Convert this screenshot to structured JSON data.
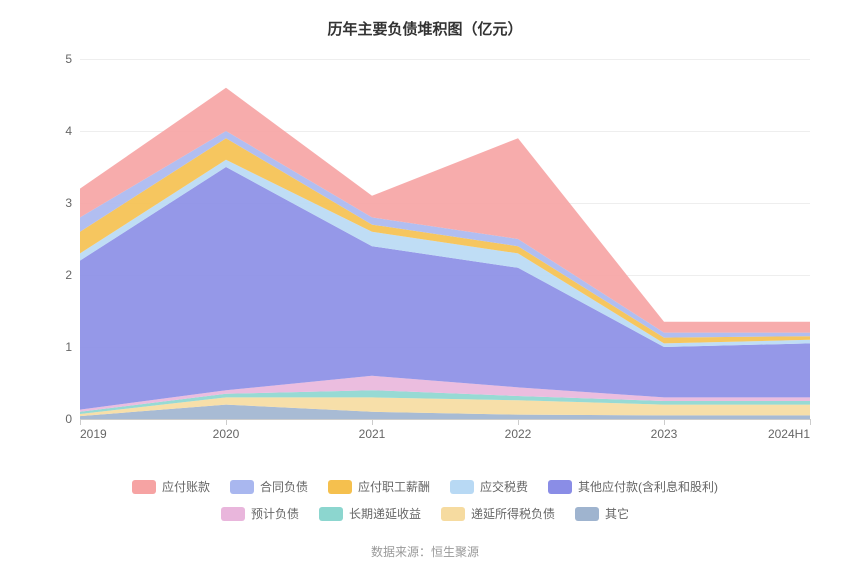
{
  "chart": {
    "type": "area-stacked",
    "title": "历年主要负债堆积图（亿元）",
    "title_fontsize": 15,
    "title_color": "#333333",
    "background_color": "#ffffff",
    "grid_color": "#eeeeee",
    "axis_line_color": "#cccccc",
    "axis_label_color": "#666666",
    "axis_label_fontsize": 12,
    "ylim": [
      0,
      5
    ],
    "ytick_step": 1,
    "categories": [
      "2019",
      "2020",
      "2021",
      "2022",
      "2023",
      "2024H1"
    ],
    "series": [
      {
        "name": "其它",
        "color": "#9fb4cf",
        "values": [
          0.04,
          0.2,
          0.1,
          0.06,
          0.05,
          0.05
        ]
      },
      {
        "name": "递延所得税负债",
        "color": "#f6dba0",
        "values": [
          0.03,
          0.1,
          0.2,
          0.2,
          0.15,
          0.15
        ]
      },
      {
        "name": "长期递延收益",
        "color": "#8cd6cf",
        "values": [
          0.03,
          0.05,
          0.1,
          0.06,
          0.05,
          0.05
        ]
      },
      {
        "name": "预计负债",
        "color": "#e9b6dc",
        "values": [
          0.03,
          0.05,
          0.2,
          0.12,
          0.05,
          0.05
        ]
      },
      {
        "name": "其他应付款(含利息和股利)",
        "color": "#8a8de6",
        "values": [
          2.07,
          3.1,
          1.8,
          1.66,
          0.7,
          0.75
        ]
      },
      {
        "name": "应交税费",
        "color": "#b8d9f4",
        "values": [
          0.1,
          0.1,
          0.2,
          0.2,
          0.05,
          0.05
        ]
      },
      {
        "name": "应付职工薪酬",
        "color": "#f5c04e",
        "values": [
          0.3,
          0.3,
          0.1,
          0.1,
          0.08,
          0.05
        ]
      },
      {
        "name": "合同负债",
        "color": "#a9b7ef",
        "values": [
          0.2,
          0.1,
          0.1,
          0.1,
          0.07,
          0.05
        ]
      },
      {
        "name": "应付账款",
        "color": "#f6a3a3",
        "values": [
          0.4,
          0.6,
          0.3,
          1.4,
          0.15,
          0.15
        ]
      }
    ],
    "legend_order": [
      "应付账款",
      "合同负债",
      "应付职工薪酬",
      "应交税费",
      "其他应付款(含利息和股利)",
      "预计负债",
      "长期递延收益",
      "递延所得税负债",
      "其它"
    ],
    "legend_fontsize": 12,
    "legend_color": "#666666"
  },
  "source": {
    "label": "数据来源：恒生聚源",
    "fontsize": 12,
    "color": "#999999"
  }
}
